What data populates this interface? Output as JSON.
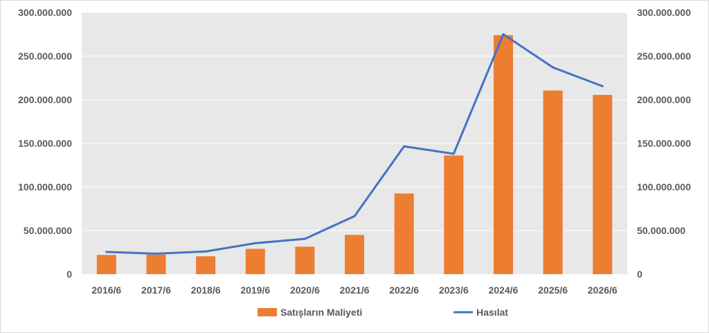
{
  "chart_data": {
    "type": "bar",
    "categories": [
      "2016/6",
      "2017/6",
      "2018/6",
      "2019/6",
      "2020/6",
      "2021/6",
      "2022/6",
      "2023/6",
      "2024/6",
      "2025/6",
      "2026/6"
    ],
    "series": [
      {
        "name": "Satışların Maliyeti",
        "type": "bar",
        "color": "#ed7d31",
        "values": [
          22000000,
          22500000,
          20500000,
          29000000,
          31500000,
          45000000,
          92500000,
          136000000,
          274000000,
          210500000,
          205500000
        ]
      },
      {
        "name": "Hasılat",
        "type": "line",
        "color": "#4472c4",
        "values": [
          25500000,
          23500000,
          26000000,
          35500000,
          40500000,
          66500000,
          146500000,
          138000000,
          275000000,
          237000000,
          215500000
        ]
      }
    ],
    "ylim": [
      0,
      300000000
    ],
    "yticks": [
      "0",
      "50.000.000",
      "100.000.000",
      "150.000.000",
      "200.000.000",
      "250.000.000",
      "300.000.000"
    ],
    "y2ticks": [
      "0",
      "50.000.000",
      "100.000.000",
      "150.000.000",
      "200.000.000",
      "250.000.000",
      "300.000.000"
    ],
    "legend_position": "bottom",
    "plot_background": "#e8e8e8"
  }
}
